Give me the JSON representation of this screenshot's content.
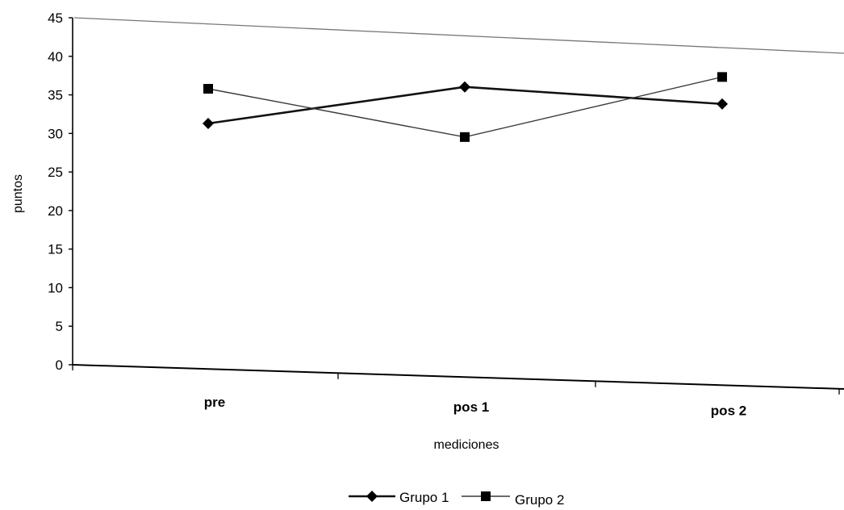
{
  "chart_data": {
    "type": "line",
    "categories": [
      "pre",
      "pos 1",
      "pos 2"
    ],
    "series": [
      {
        "name": "Grupo 1",
        "values": [
          31.5,
          36.5,
          34.5
        ],
        "marker": "diamond",
        "color": "#111111"
      },
      {
        "name": "Grupo 2",
        "values": [
          36,
          30,
          38
        ],
        "marker": "square",
        "color": "#3a3a3a"
      }
    ],
    "xlabel": "mediciones",
    "ylabel": "puntos",
    "ylim": [
      0,
      45
    ],
    "yticks": [
      0,
      5,
      10,
      15,
      20,
      25,
      30,
      35,
      40,
      45
    ],
    "grid": false,
    "legend_position": "bottom"
  }
}
